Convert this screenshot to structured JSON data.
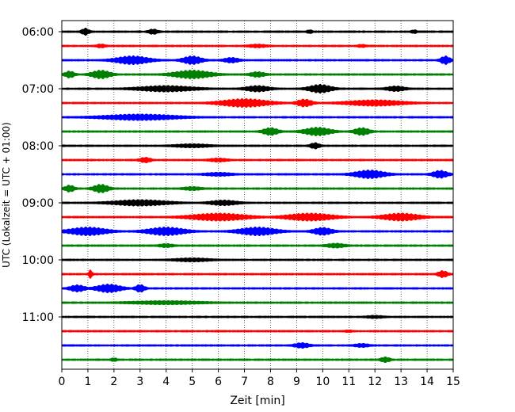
{
  "chart_data": {
    "type": "line",
    "xlabel": "Zeit  [min]",
    "ylabel": "UTC (Lokalzeit = UTC + 01:00)",
    "xlim": [
      0,
      15
    ],
    "x_ticks": [
      0,
      1,
      2,
      3,
      4,
      5,
      6,
      7,
      8,
      9,
      10,
      11,
      12,
      13,
      14,
      15
    ],
    "x_tick_labels": [
      "0",
      "1",
      "2",
      "3",
      "4",
      "5",
      "6",
      "7",
      "8",
      "9",
      "10",
      "11",
      "12",
      "13",
      "14",
      "15"
    ],
    "y_ticks": [
      {
        "hour": 6,
        "label": "06:00"
      },
      {
        "hour": 7,
        "label": "07:00"
      },
      {
        "hour": 8,
        "label": "08:00"
      },
      {
        "hour": 9,
        "label": "09:00"
      },
      {
        "hour": 10,
        "label": "10:00"
      },
      {
        "hour": 11,
        "label": "11:00"
      }
    ],
    "grid": "vertical-dotted",
    "colors": {
      "black": "#000000",
      "red": "#ff0000",
      "blue": "#0000ff",
      "green": "#008000"
    },
    "series": [
      {
        "start": "06:00",
        "color": "black",
        "bursts": [
          {
            "x": 0.9,
            "w": 0.4,
            "a": 4
          },
          {
            "x": 3.5,
            "w": 0.5,
            "a": 3
          },
          {
            "x": 9.5,
            "w": 0.3,
            "a": 2
          },
          {
            "x": 13.5,
            "w": 0.3,
            "a": 2
          }
        ]
      },
      {
        "start": "06:15",
        "color": "red",
        "bursts": [
          {
            "x": 1.5,
            "w": 0.5,
            "a": 2
          },
          {
            "x": 7.5,
            "w": 1,
            "a": 1.8
          },
          {
            "x": 11.5,
            "w": 0.5,
            "a": 1.5
          }
        ]
      },
      {
        "start": "06:30",
        "color": "blue",
        "bursts": [
          {
            "x": 2.7,
            "w": 1.8,
            "a": 5
          },
          {
            "x": 5,
            "w": 1,
            "a": 5
          },
          {
            "x": 6.5,
            "w": 0.8,
            "a": 3
          },
          {
            "x": 14.7,
            "w": 0.5,
            "a": 5
          }
        ]
      },
      {
        "start": "06:45",
        "color": "green",
        "bursts": [
          {
            "x": 0.3,
            "w": 0.5,
            "a": 4
          },
          {
            "x": 1.5,
            "w": 1,
            "a": 5
          },
          {
            "x": 5,
            "w": 2,
            "a": 5
          },
          {
            "x": 7.5,
            "w": 0.8,
            "a": 3
          }
        ]
      },
      {
        "start": "07:00",
        "color": "black",
        "bursts": [
          {
            "x": 4,
            "w": 3,
            "a": 3.5
          },
          {
            "x": 7.5,
            "w": 1.3,
            "a": 3.5
          },
          {
            "x": 9.9,
            "w": 1.2,
            "a": 5
          },
          {
            "x": 12.8,
            "w": 1,
            "a": 3
          }
        ]
      },
      {
        "start": "07:15",
        "color": "red",
        "bursts": [
          {
            "x": 7,
            "w": 2.5,
            "a": 5
          },
          {
            "x": 9.3,
            "w": 0.8,
            "a": 4.5
          },
          {
            "x": 12,
            "w": 3,
            "a": 3.5
          }
        ]
      },
      {
        "start": "07:30",
        "color": "blue",
        "bursts": [
          {
            "x": 3,
            "w": 4,
            "a": 3.5
          }
        ]
      },
      {
        "start": "07:45",
        "color": "green",
        "bursts": [
          {
            "x": 8,
            "w": 0.8,
            "a": 4.5
          },
          {
            "x": 9.8,
            "w": 1.4,
            "a": 5
          },
          {
            "x": 11.5,
            "w": 0.8,
            "a": 4.5
          }
        ]
      },
      {
        "start": "08:00",
        "color": "black",
        "bursts": [
          {
            "x": 5,
            "w": 2,
            "a": 2
          },
          {
            "x": 9.7,
            "w": 0.5,
            "a": 3.5
          }
        ]
      },
      {
        "start": "08:15",
        "color": "red",
        "bursts": [
          {
            "x": 3.2,
            "w": 0.6,
            "a": 3
          },
          {
            "x": 6,
            "w": 1,
            "a": 2
          }
        ]
      },
      {
        "start": "08:30",
        "color": "blue",
        "bursts": [
          {
            "x": 6,
            "w": 1.5,
            "a": 2
          },
          {
            "x": 11.8,
            "w": 1.6,
            "a": 5
          },
          {
            "x": 14.5,
            "w": 0.8,
            "a": 4.5
          }
        ]
      },
      {
        "start": "08:45",
        "color": "green",
        "bursts": [
          {
            "x": 0.3,
            "w": 0.5,
            "a": 4
          },
          {
            "x": 1.5,
            "w": 0.8,
            "a": 5
          },
          {
            "x": 5,
            "w": 1,
            "a": 2
          }
        ]
      },
      {
        "start": "09:00",
        "color": "black",
        "bursts": [
          {
            "x": 3,
            "w": 3,
            "a": 3.5
          },
          {
            "x": 6.2,
            "w": 1.5,
            "a": 3
          }
        ]
      },
      {
        "start": "09:15",
        "color": "red",
        "bursts": [
          {
            "x": 6,
            "w": 3,
            "a": 4.5
          },
          {
            "x": 9.5,
            "w": 2.5,
            "a": 4.5
          },
          {
            "x": 13,
            "w": 2,
            "a": 4.5
          }
        ]
      },
      {
        "start": "09:30",
        "color": "blue",
        "bursts": [
          {
            "x": 1,
            "w": 2,
            "a": 5
          },
          {
            "x": 4,
            "w": 2,
            "a": 5
          },
          {
            "x": 7.5,
            "w": 2,
            "a": 5
          },
          {
            "x": 10,
            "w": 1,
            "a": 4.5
          }
        ]
      },
      {
        "start": "09:45",
        "color": "green",
        "bursts": [
          {
            "x": 4,
            "w": 0.8,
            "a": 2
          },
          {
            "x": 10.5,
            "w": 1,
            "a": 2.5
          }
        ]
      },
      {
        "start": "10:00",
        "color": "black",
        "bursts": [
          {
            "x": 5,
            "w": 2,
            "a": 2
          }
        ]
      },
      {
        "start": "10:15",
        "color": "red",
        "bursts": [
          {
            "x": 1.1,
            "w": 0.2,
            "a": 5
          },
          {
            "x": 14.6,
            "w": 0.5,
            "a": 4
          }
        ]
      },
      {
        "start": "10:30",
        "color": "blue",
        "bursts": [
          {
            "x": 0.6,
            "w": 0.8,
            "a": 4
          },
          {
            "x": 1.8,
            "w": 1.3,
            "a": 5
          },
          {
            "x": 3,
            "w": 0.5,
            "a": 4.5
          }
        ]
      },
      {
        "start": "10:45",
        "color": "green",
        "bursts": [
          {
            "x": 4,
            "w": 4,
            "a": 2
          }
        ]
      },
      {
        "start": "11:00",
        "color": "black",
        "bursts": [
          {
            "x": 12,
            "w": 1,
            "a": 1.5
          }
        ]
      },
      {
        "start": "11:15",
        "color": "red",
        "bursts": [
          {
            "x": 11,
            "w": 0.5,
            "a": 1
          }
        ]
      },
      {
        "start": "11:30",
        "color": "blue",
        "bursts": [
          {
            "x": 9.2,
            "w": 0.8,
            "a": 3
          },
          {
            "x": 11.5,
            "w": 0.8,
            "a": 2
          }
        ]
      },
      {
        "start": "11:45",
        "color": "green",
        "bursts": [
          {
            "x": 2,
            "w": 0.3,
            "a": 2
          },
          {
            "x": 12.4,
            "w": 0.5,
            "a": 3
          }
        ]
      }
    ]
  }
}
